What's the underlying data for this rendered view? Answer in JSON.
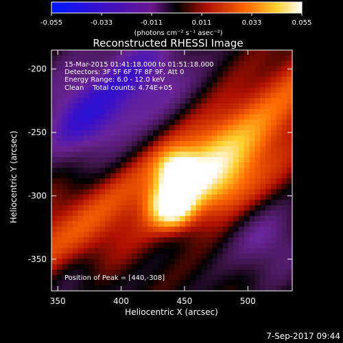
{
  "chart_data": {
    "type": "heatmap",
    "title": "Reconstructed RHESSI Image",
    "xlabel": "Heliocentric X (arcsec)",
    "ylabel": "Heliocentric Y (arcsec)",
    "xlim": [
      345,
      535
    ],
    "ylim": [
      -375,
      -185
    ],
    "x_ticks": [
      350,
      400,
      450,
      500
    ],
    "y_ticks": [
      -200,
      -250,
      -300,
      -350
    ],
    "colorbar": {
      "min": -0.055,
      "max": 0.055,
      "ticks": [
        "-0.055",
        "-0.033",
        "-0.011",
        "0.011",
        "0.033",
        "0.055"
      ],
      "unit_label": "(photons cm⁻² s⁻¹ asec⁻²)"
    },
    "info_lines": [
      "15-Mar-2015 01:41:18.000 to 01:51:18.000",
      "Detectors: 3F 5F 6F 7F 8F 9F, Att 0",
      "Energy Range: 6.0 - 12.0 keV",
      "Clean    Total counts: 4.74E+05"
    ],
    "peak_label": "Position of Peak = [440,-308]",
    "peak": [
      440,
      -308
    ],
    "timestamp": "7-Sep-2017 09:44"
  }
}
